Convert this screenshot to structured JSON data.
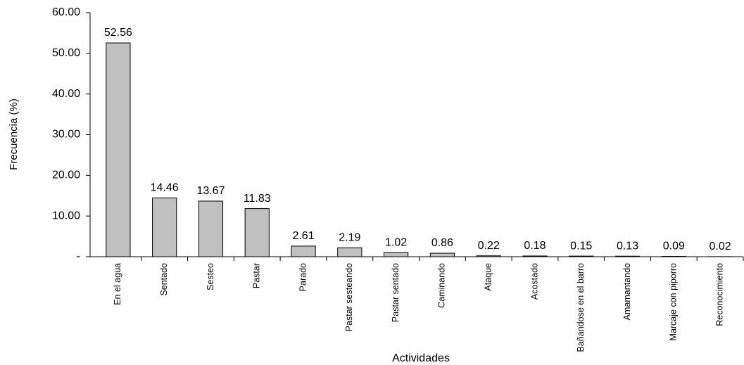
{
  "chart_data": {
    "type": "bar",
    "categories": [
      "En el agua",
      "Sentado",
      "Sesteo",
      "Pastar",
      "Parado",
      "Pastar sesteando",
      "Pastar sentado",
      "Caminando",
      "Ataque",
      "Acostado",
      "Bañandose en el barro",
      "Amamantando",
      "Marcaje con piporro",
      "Reconocimiento"
    ],
    "values": [
      52.56,
      14.46,
      13.67,
      11.83,
      2.61,
      2.19,
      1.02,
      0.86,
      0.22,
      0.18,
      0.15,
      0.13,
      0.09,
      0.02
    ],
    "color": "#c0c0c0",
    "x_label": "Actividades",
    "y_label": "Frecuencia (%)",
    "ylim": [
      0,
      60
    ],
    "yticks": [
      {
        "value": 0,
        "label": "-"
      },
      {
        "value": 10,
        "label": "10.00"
      },
      {
        "value": 20,
        "label": "20.00"
      },
      {
        "value": 30,
        "label": "30.00"
      },
      {
        "value": 40,
        "label": "40.00"
      },
      {
        "value": 50,
        "label": "50.00"
      },
      {
        "value": 60,
        "label": "60.00"
      }
    ],
    "grid": false
  }
}
